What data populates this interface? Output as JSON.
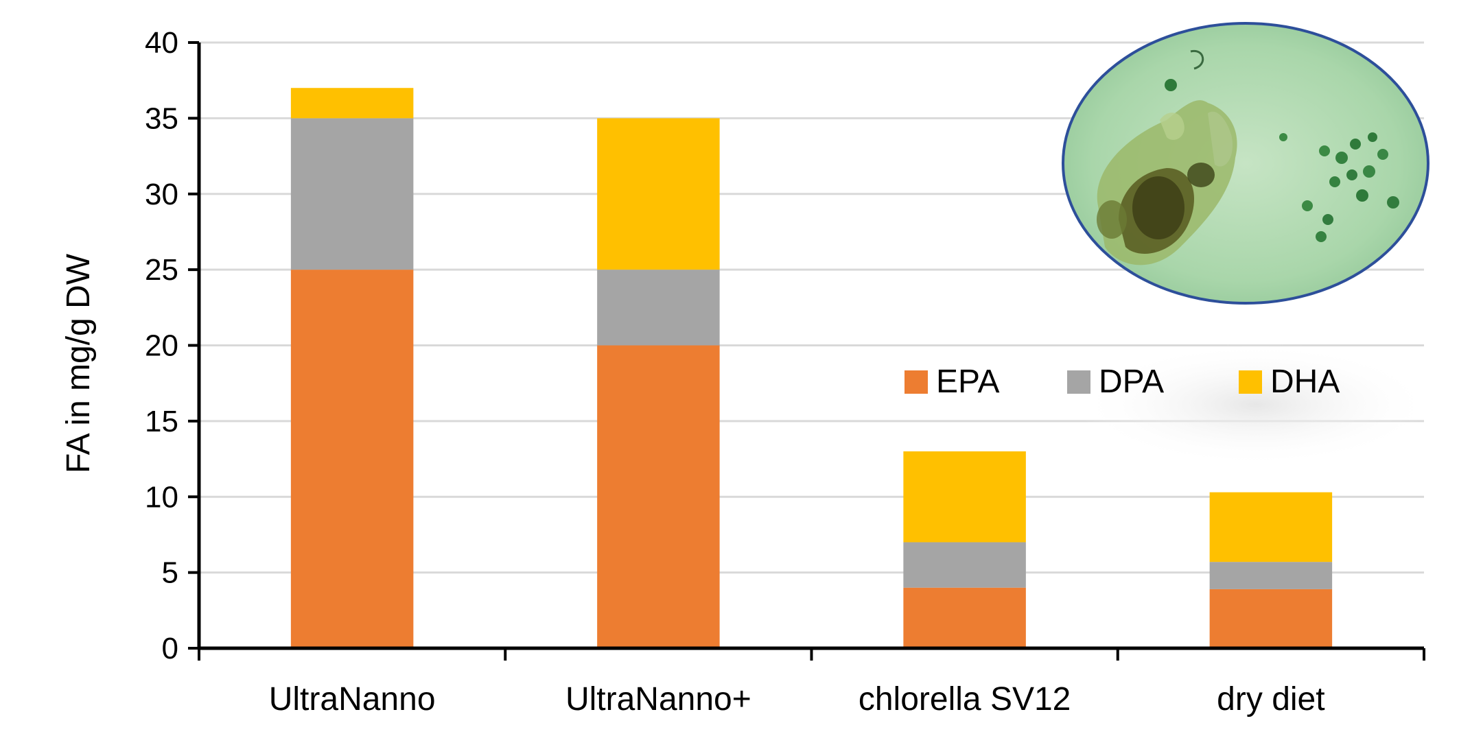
{
  "chart_data": {
    "type": "bar",
    "stacked": true,
    "categories": [
      "UltraNanno",
      "UltraNanno+",
      "chlorella SV12",
      "dry diet"
    ],
    "series": [
      {
        "name": "EPA",
        "values": [
          25,
          20,
          4,
          3.9
        ],
        "color": "#ED7D31"
      },
      {
        "name": "DPA",
        "values": [
          10,
          5,
          3,
          1.8
        ],
        "color": "#A5A5A5"
      },
      {
        "name": "DHA",
        "values": [
          2,
          10,
          6,
          4.6
        ],
        "color": "#FFC000"
      }
    ],
    "title": "",
    "xlabel": "",
    "ylabel": "FA in mg/g DW",
    "ylim": [
      0,
      40
    ],
    "yticks": [
      0,
      5,
      10,
      15,
      20,
      25,
      30,
      35,
      40
    ],
    "grid": true,
    "legend_position": "right, mid-height",
    "inset_image": "micrograph of rotifer in green medium"
  }
}
